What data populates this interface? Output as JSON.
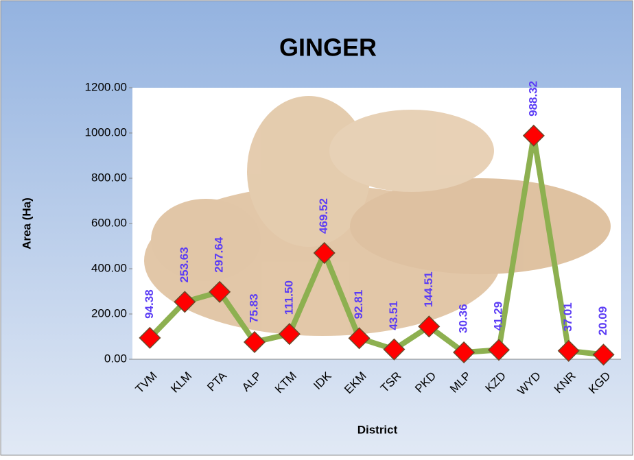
{
  "chart_data": {
    "type": "line",
    "title": "GINGER",
    "x_label": "District",
    "y_label": "Area (Ha)",
    "categories": [
      "TVM",
      "KLM",
      "PTA",
      "ALP",
      "KTM",
      "IDK",
      "EKM",
      "TSR",
      "PKD",
      "MLP",
      "KZD",
      "WYD",
      "KNR",
      "KGD"
    ],
    "series": [
      {
        "name": "Area (Ha)",
        "color": "#8db050",
        "marker_color": "#ff0000",
        "values": [
          94.38,
          253.63,
          297.64,
          75.83,
          111.5,
          469.52,
          92.81,
          43.51,
          144.51,
          30.36,
          41.29,
          988.32,
          37.01,
          20.09
        ],
        "value_labels": [
          "94.38",
          "253.63",
          "297.64",
          "75.83",
          "111.50",
          "469.52",
          "92.81",
          "43.51",
          "144.51",
          "30.36",
          "41.29",
          "988.32",
          "37.01",
          "20.09"
        ],
        "label_color": "#5b3cf5"
      }
    ],
    "ylim": [
      0,
      1200
    ],
    "yticks": [
      {
        "value": 0,
        "label": "0.00"
      },
      {
        "value": 200,
        "label": "200.00"
      },
      {
        "value": 400,
        "label": "400.00"
      },
      {
        "value": 600,
        "label": "600.00"
      },
      {
        "value": 800,
        "label": "800.00"
      },
      {
        "value": 1000,
        "label": "1000.00"
      },
      {
        "value": 1200,
        "label": "1200.00"
      }
    ]
  }
}
